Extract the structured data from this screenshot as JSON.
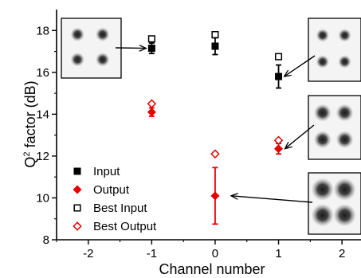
{
  "chart_data": {
    "type": "scatter",
    "xlabel": "Channel number",
    "ylabel_main": "Q",
    "ylabel_sup": "2",
    "ylabel_rest": " factor (dB)",
    "xlim": [
      -2.5,
      2.3
    ],
    "ylim": [
      8,
      19
    ],
    "x_ticks": [
      -2,
      -1,
      0,
      1,
      2
    ],
    "x_tick_labels": [
      "-2",
      "-1",
      "0",
      "1",
      "2"
    ],
    "y_ticks": [
      8,
      10,
      12,
      14,
      16,
      18
    ],
    "y_tick_labels": [
      "8",
      "10",
      "12",
      "14",
      "16",
      "18"
    ],
    "grid": false,
    "legend_position": "bottom-left",
    "series": [
      {
        "name": "Input",
        "marker": "square-filled",
        "color": "#000000",
        "points": [
          {
            "x": -1,
            "y": 17.15,
            "err": 0.25
          },
          {
            "x": 0,
            "y": 17.25,
            "err": 0.4
          },
          {
            "x": 1,
            "y": 15.8,
            "err": 0.55
          }
        ]
      },
      {
        "name": "Output",
        "marker": "diamond-filled",
        "color": "#e60000",
        "points": [
          {
            "x": -1,
            "y": 14.1,
            "err": 0.2
          },
          {
            "x": 0,
            "y": 10.1,
            "err": 1.35
          },
          {
            "x": 1,
            "y": 12.35,
            "err": 0.25
          }
        ]
      },
      {
        "name": "Best Input",
        "marker": "square-open",
        "color": "#000000",
        "points": [
          {
            "x": -1,
            "y": 17.6
          },
          {
            "x": 0,
            "y": 17.8
          },
          {
            "x": 1,
            "y": 16.75
          }
        ]
      },
      {
        "name": "Best Output",
        "marker": "diamond-open",
        "color": "#e60000",
        "points": [
          {
            "x": -1,
            "y": 14.5
          },
          {
            "x": 0,
            "y": 12.1
          },
          {
            "x": 1,
            "y": 12.75
          }
        ]
      }
    ],
    "insets": [
      {
        "name": "inset-channel-minus1-input",
        "blob_size": 0.8,
        "points_to": {
          "x": -1,
          "y": 17.15
        }
      },
      {
        "name": "inset-channel-1-input",
        "blob_size": 0.75,
        "points_to": {
          "x": 1,
          "y": 15.8
        }
      },
      {
        "name": "inset-channel-1-output",
        "blob_size": 1.0,
        "points_to": {
          "x": 1,
          "y": 12.35
        }
      },
      {
        "name": "inset-channel-0-output",
        "blob_size": 1.3,
        "points_to": {
          "x": 0,
          "y": 10.1
        }
      }
    ]
  }
}
